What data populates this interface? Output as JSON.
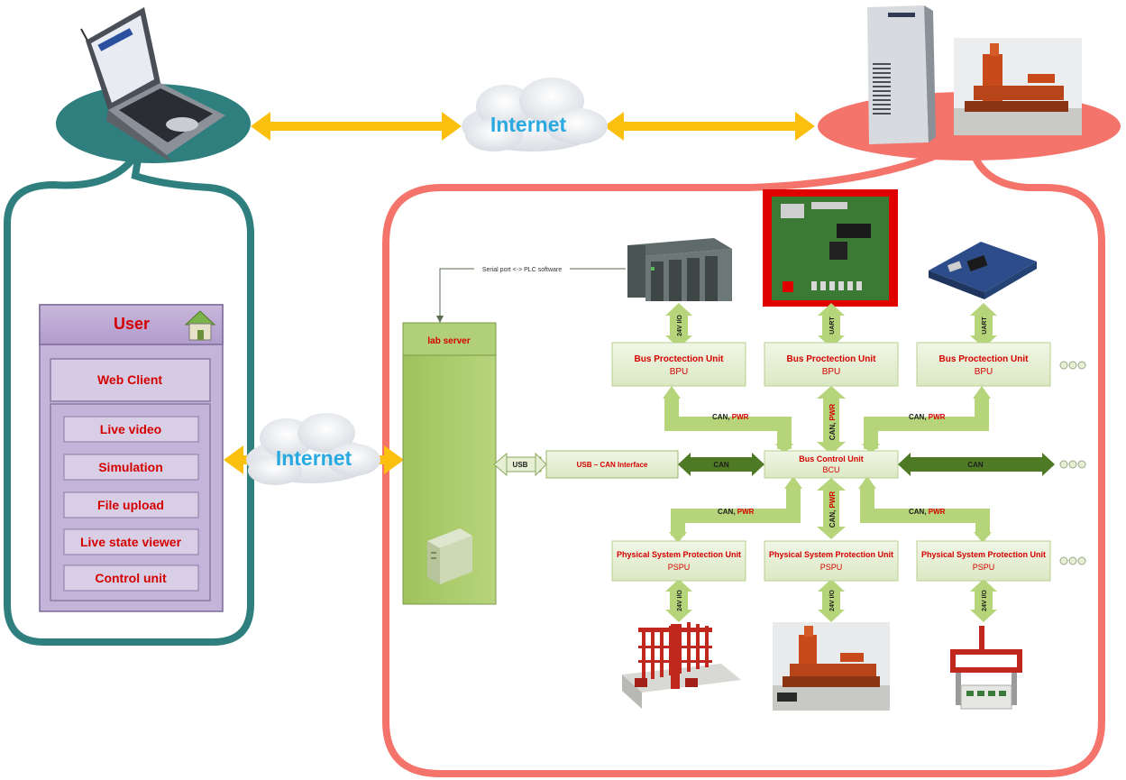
{
  "internet_top": "Internet",
  "internet_left": "Internet",
  "user_panel": {
    "title": "User",
    "web_client": "Web Client",
    "items": [
      "Live video",
      "Simulation",
      "File upload",
      "Live state viewer",
      "Control unit"
    ]
  },
  "serial_note": "Serial port <-> PLC software",
  "lab_server": "lab server",
  "usb": "USB",
  "usb_can_interface": "USB – CAN Interface",
  "can": "CAN",
  "pwr": "PWR",
  "can_comma": "CAN, ",
  "v24_io": "24V I/O",
  "uart": "UART",
  "bpu": {
    "title": "Bus Proctection Unit",
    "abbr": "BPU"
  },
  "bcu": {
    "title": "Bus Control Unit",
    "abbr": "BCU"
  },
  "pspu": {
    "title": "Physical System Protection Unit",
    "abbr": "PSPU"
  },
  "colors": {
    "teal": "#2f7f7f",
    "salmon": "#f4736a",
    "arrow_yellow": "#fbbf0e",
    "green_box": "#e6efd3",
    "green_arrow": "#b6d47a",
    "dark_green": "#4e7a25",
    "red_text": "#d40000",
    "internet_blue": "#29a9e0"
  }
}
